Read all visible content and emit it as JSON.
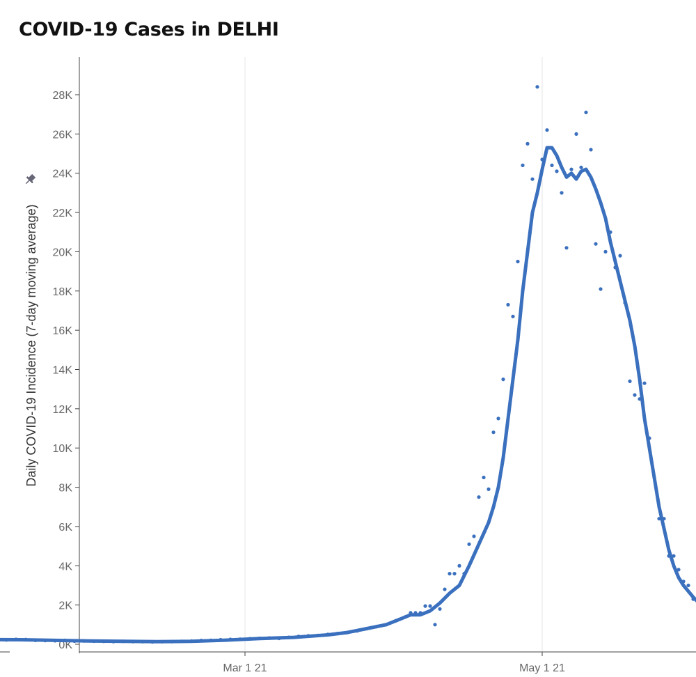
{
  "chart_data": {
    "type": "line",
    "title": "COVID-19 Cases in DELHI",
    "ylabel": "Daily COVID-19 Incidence (7-day moving average)",
    "xlabel": "",
    "pin_icon": "pin-icon",
    "colors": {
      "series": "#3a70be",
      "grid": "#e6e6e6",
      "axis": "#444444",
      "tick_text": "#666666"
    },
    "grid": {
      "vertical": true,
      "horizontal": false
    },
    "x_range": [
      "2021-01-01",
      "2021-06-09"
    ],
    "ylim": [
      0,
      29500
    ],
    "y_ticks": [
      {
        "value": 0,
        "label": "0K"
      },
      {
        "value": 2000,
        "label": "2K"
      },
      {
        "value": 4000,
        "label": "4K"
      },
      {
        "value": 6000,
        "label": "6K"
      },
      {
        "value": 8000,
        "label": "8K"
      },
      {
        "value": 10000,
        "label": "10K"
      },
      {
        "value": 12000,
        "label": "12K"
      },
      {
        "value": 14000,
        "label": "14K"
      },
      {
        "value": 16000,
        "label": "16K"
      },
      {
        "value": 18000,
        "label": "18K"
      },
      {
        "value": 20000,
        "label": "20K"
      },
      {
        "value": 22000,
        "label": "22K"
      },
      {
        "value": 24000,
        "label": "24K"
      },
      {
        "value": 26000,
        "label": "26K"
      },
      {
        "value": 28000,
        "label": "28K"
      }
    ],
    "x_ticks": [
      {
        "value": "2021-03-01",
        "label": "Mar 1 21"
      },
      {
        "value": "2021-05-01",
        "label": "May 1 21"
      }
    ],
    "series": [
      {
        "kind": "daily-points",
        "points": [
          [
            "2021-01-07",
            270
          ],
          [
            "2021-01-09",
            280
          ],
          [
            "2021-01-11",
            220
          ],
          [
            "2021-01-13",
            250
          ],
          [
            "2021-01-15",
            240
          ],
          [
            "2021-01-17",
            200
          ],
          [
            "2021-01-19",
            190
          ],
          [
            "2021-01-21",
            180
          ],
          [
            "2021-01-23",
            200
          ],
          [
            "2021-01-25",
            160
          ],
          [
            "2021-01-27",
            170
          ],
          [
            "2021-01-29",
            160
          ],
          [
            "2021-01-31",
            150
          ],
          [
            "2021-02-02",
            140
          ],
          [
            "2021-02-04",
            150
          ],
          [
            "2021-02-06",
            140
          ],
          [
            "2021-02-08",
            130
          ],
          [
            "2021-02-10",
            120
          ],
          [
            "2021-02-12",
            130
          ],
          [
            "2021-02-14",
            140
          ],
          [
            "2021-02-16",
            150
          ],
          [
            "2021-02-18",
            160
          ],
          [
            "2021-02-20",
            190
          ],
          [
            "2021-02-22",
            200
          ],
          [
            "2021-02-24",
            230
          ],
          [
            "2021-02-26",
            250
          ],
          [
            "2021-02-28",
            260
          ],
          [
            "2021-03-02",
            280
          ],
          [
            "2021-03-04",
            300
          ],
          [
            "2021-03-06",
            320
          ],
          [
            "2021-03-08",
            300
          ],
          [
            "2021-03-10",
            350
          ],
          [
            "2021-03-12",
            400
          ],
          [
            "2021-03-14",
            430
          ],
          [
            "2021-03-16",
            450
          ],
          [
            "2021-03-18",
            500
          ],
          [
            "2021-03-20",
            550
          ],
          [
            "2021-03-22",
            600
          ],
          [
            "2021-03-24",
            680
          ],
          [
            "2021-03-26",
            800
          ],
          [
            "2021-03-28",
            900
          ],
          [
            "2021-03-30",
            1000
          ],
          [
            "2021-04-01",
            1200
          ],
          [
            "2021-04-03",
            1400
          ],
          [
            "2021-04-04",
            1600
          ],
          [
            "2021-04-05",
            1600
          ],
          [
            "2021-04-06",
            1600
          ],
          [
            "2021-04-07",
            1950
          ],
          [
            "2021-04-08",
            1950
          ],
          [
            "2021-04-09",
            1000
          ],
          [
            "2021-04-10",
            1800
          ],
          [
            "2021-04-11",
            2800
          ],
          [
            "2021-04-12",
            3600
          ],
          [
            "2021-04-13",
            3600
          ],
          [
            "2021-04-14",
            4000
          ],
          [
            "2021-04-15",
            3600
          ],
          [
            "2021-04-16",
            5100
          ],
          [
            "2021-04-17",
            5500
          ],
          [
            "2021-04-18",
            7500
          ],
          [
            "2021-04-19",
            8500
          ],
          [
            "2021-04-20",
            7900
          ],
          [
            "2021-04-21",
            10800
          ],
          [
            "2021-04-22",
            11500
          ],
          [
            "2021-04-23",
            13500
          ],
          [
            "2021-04-24",
            17300
          ],
          [
            "2021-04-25",
            16700
          ],
          [
            "2021-04-26",
            19500
          ],
          [
            "2021-04-27",
            24400
          ],
          [
            "2021-04-28",
            25500
          ],
          [
            "2021-04-29",
            23700
          ],
          [
            "2021-04-30",
            28400
          ],
          [
            "2021-05-01",
            24700
          ],
          [
            "2021-05-02",
            26200
          ],
          [
            "2021-05-03",
            24400
          ],
          [
            "2021-05-04",
            24100
          ],
          [
            "2021-05-05",
            23000
          ],
          [
            "2021-05-06",
            20200
          ],
          [
            "2021-05-07",
            24200
          ],
          [
            "2021-05-08",
            26000
          ],
          [
            "2021-05-09",
            24300
          ],
          [
            "2021-05-10",
            27100
          ],
          [
            "2021-05-11",
            25200
          ],
          [
            "2021-05-12",
            20400
          ],
          [
            "2021-05-13",
            18100
          ],
          [
            "2021-05-14",
            20000
          ],
          [
            "2021-05-15",
            21000
          ],
          [
            "2021-05-16",
            19200
          ],
          [
            "2021-05-17",
            19800
          ],
          [
            "2021-05-18",
            17400
          ],
          [
            "2021-05-19",
            13400
          ],
          [
            "2021-05-20",
            12700
          ],
          [
            "2021-05-21",
            12500
          ],
          [
            "2021-05-22",
            13300
          ],
          [
            "2021-05-23",
            10500
          ],
          [
            "2021-05-24",
            8500
          ],
          [
            "2021-05-25",
            6400
          ],
          [
            "2021-05-26",
            6400
          ],
          [
            "2021-05-27",
            4500
          ],
          [
            "2021-05-28",
            4500
          ],
          [
            "2021-05-29",
            3800
          ],
          [
            "2021-05-30",
            3200
          ],
          [
            "2021-05-31",
            3000
          ],
          [
            "2021-06-01",
            2300
          ],
          [
            "2021-06-02",
            1600
          ],
          [
            "2021-06-03",
            1500
          ],
          [
            "2021-06-04",
            1500
          ],
          [
            "2021-06-05",
            1400
          ],
          [
            "2021-06-06",
            1000
          ],
          [
            "2021-06-07",
            1100
          ]
        ]
      },
      {
        "kind": "moving-average-line",
        "points": [
          [
            "2021-01-07",
            240
          ],
          [
            "2021-01-14",
            230
          ],
          [
            "2021-01-21",
            200
          ],
          [
            "2021-01-28",
            170
          ],
          [
            "2021-02-04",
            150
          ],
          [
            "2021-02-11",
            135
          ],
          [
            "2021-02-18",
            150
          ],
          [
            "2021-02-25",
            210
          ],
          [
            "2021-03-04",
            290
          ],
          [
            "2021-03-11",
            350
          ],
          [
            "2021-03-18",
            480
          ],
          [
            "2021-03-22",
            600
          ],
          [
            "2021-03-26",
            800
          ],
          [
            "2021-03-30",
            1000
          ],
          [
            "2021-04-02",
            1300
          ],
          [
            "2021-04-04",
            1500
          ],
          [
            "2021-04-06",
            1500
          ],
          [
            "2021-04-08",
            1700
          ],
          [
            "2021-04-10",
            2100
          ],
          [
            "2021-04-12",
            2600
          ],
          [
            "2021-04-14",
            3000
          ],
          [
            "2021-04-16",
            4000
          ],
          [
            "2021-04-18",
            5100
          ],
          [
            "2021-04-20",
            6200
          ],
          [
            "2021-04-21",
            7000
          ],
          [
            "2021-04-22",
            8000
          ],
          [
            "2021-04-23",
            9500
          ],
          [
            "2021-04-24",
            11500
          ],
          [
            "2021-04-25",
            13500
          ],
          [
            "2021-04-26",
            15500
          ],
          [
            "2021-04-27",
            18000
          ],
          [
            "2021-04-28",
            20000
          ],
          [
            "2021-04-29",
            22000
          ],
          [
            "2021-04-30",
            23000
          ],
          [
            "2021-05-01",
            24200
          ],
          [
            "2021-05-02",
            25300
          ],
          [
            "2021-05-03",
            25300
          ],
          [
            "2021-05-04",
            24900
          ],
          [
            "2021-05-05",
            24300
          ],
          [
            "2021-05-06",
            23800
          ],
          [
            "2021-05-07",
            24000
          ],
          [
            "2021-05-08",
            23700
          ],
          [
            "2021-05-09",
            24100
          ],
          [
            "2021-05-10",
            24200
          ],
          [
            "2021-05-11",
            23800
          ],
          [
            "2021-05-12",
            23200
          ],
          [
            "2021-05-13",
            22500
          ],
          [
            "2021-05-14",
            21700
          ],
          [
            "2021-05-15",
            20500
          ],
          [
            "2021-05-16",
            19500
          ],
          [
            "2021-05-17",
            18500
          ],
          [
            "2021-05-18",
            17500
          ],
          [
            "2021-05-19",
            16500
          ],
          [
            "2021-05-20",
            15200
          ],
          [
            "2021-05-21",
            13500
          ],
          [
            "2021-05-22",
            11500
          ],
          [
            "2021-05-23",
            10000
          ],
          [
            "2021-05-24",
            8500
          ],
          [
            "2021-05-25",
            7000
          ],
          [
            "2021-05-26",
            5900
          ],
          [
            "2021-05-27",
            4800
          ],
          [
            "2021-05-28",
            4000
          ],
          [
            "2021-05-29",
            3400
          ],
          [
            "2021-05-30",
            3000
          ],
          [
            "2021-05-31",
            2700
          ],
          [
            "2021-06-01",
            2400
          ],
          [
            "2021-06-03",
            1900
          ],
          [
            "2021-06-05",
            1550
          ],
          [
            "2021-06-07",
            1500
          ]
        ]
      }
    ]
  }
}
